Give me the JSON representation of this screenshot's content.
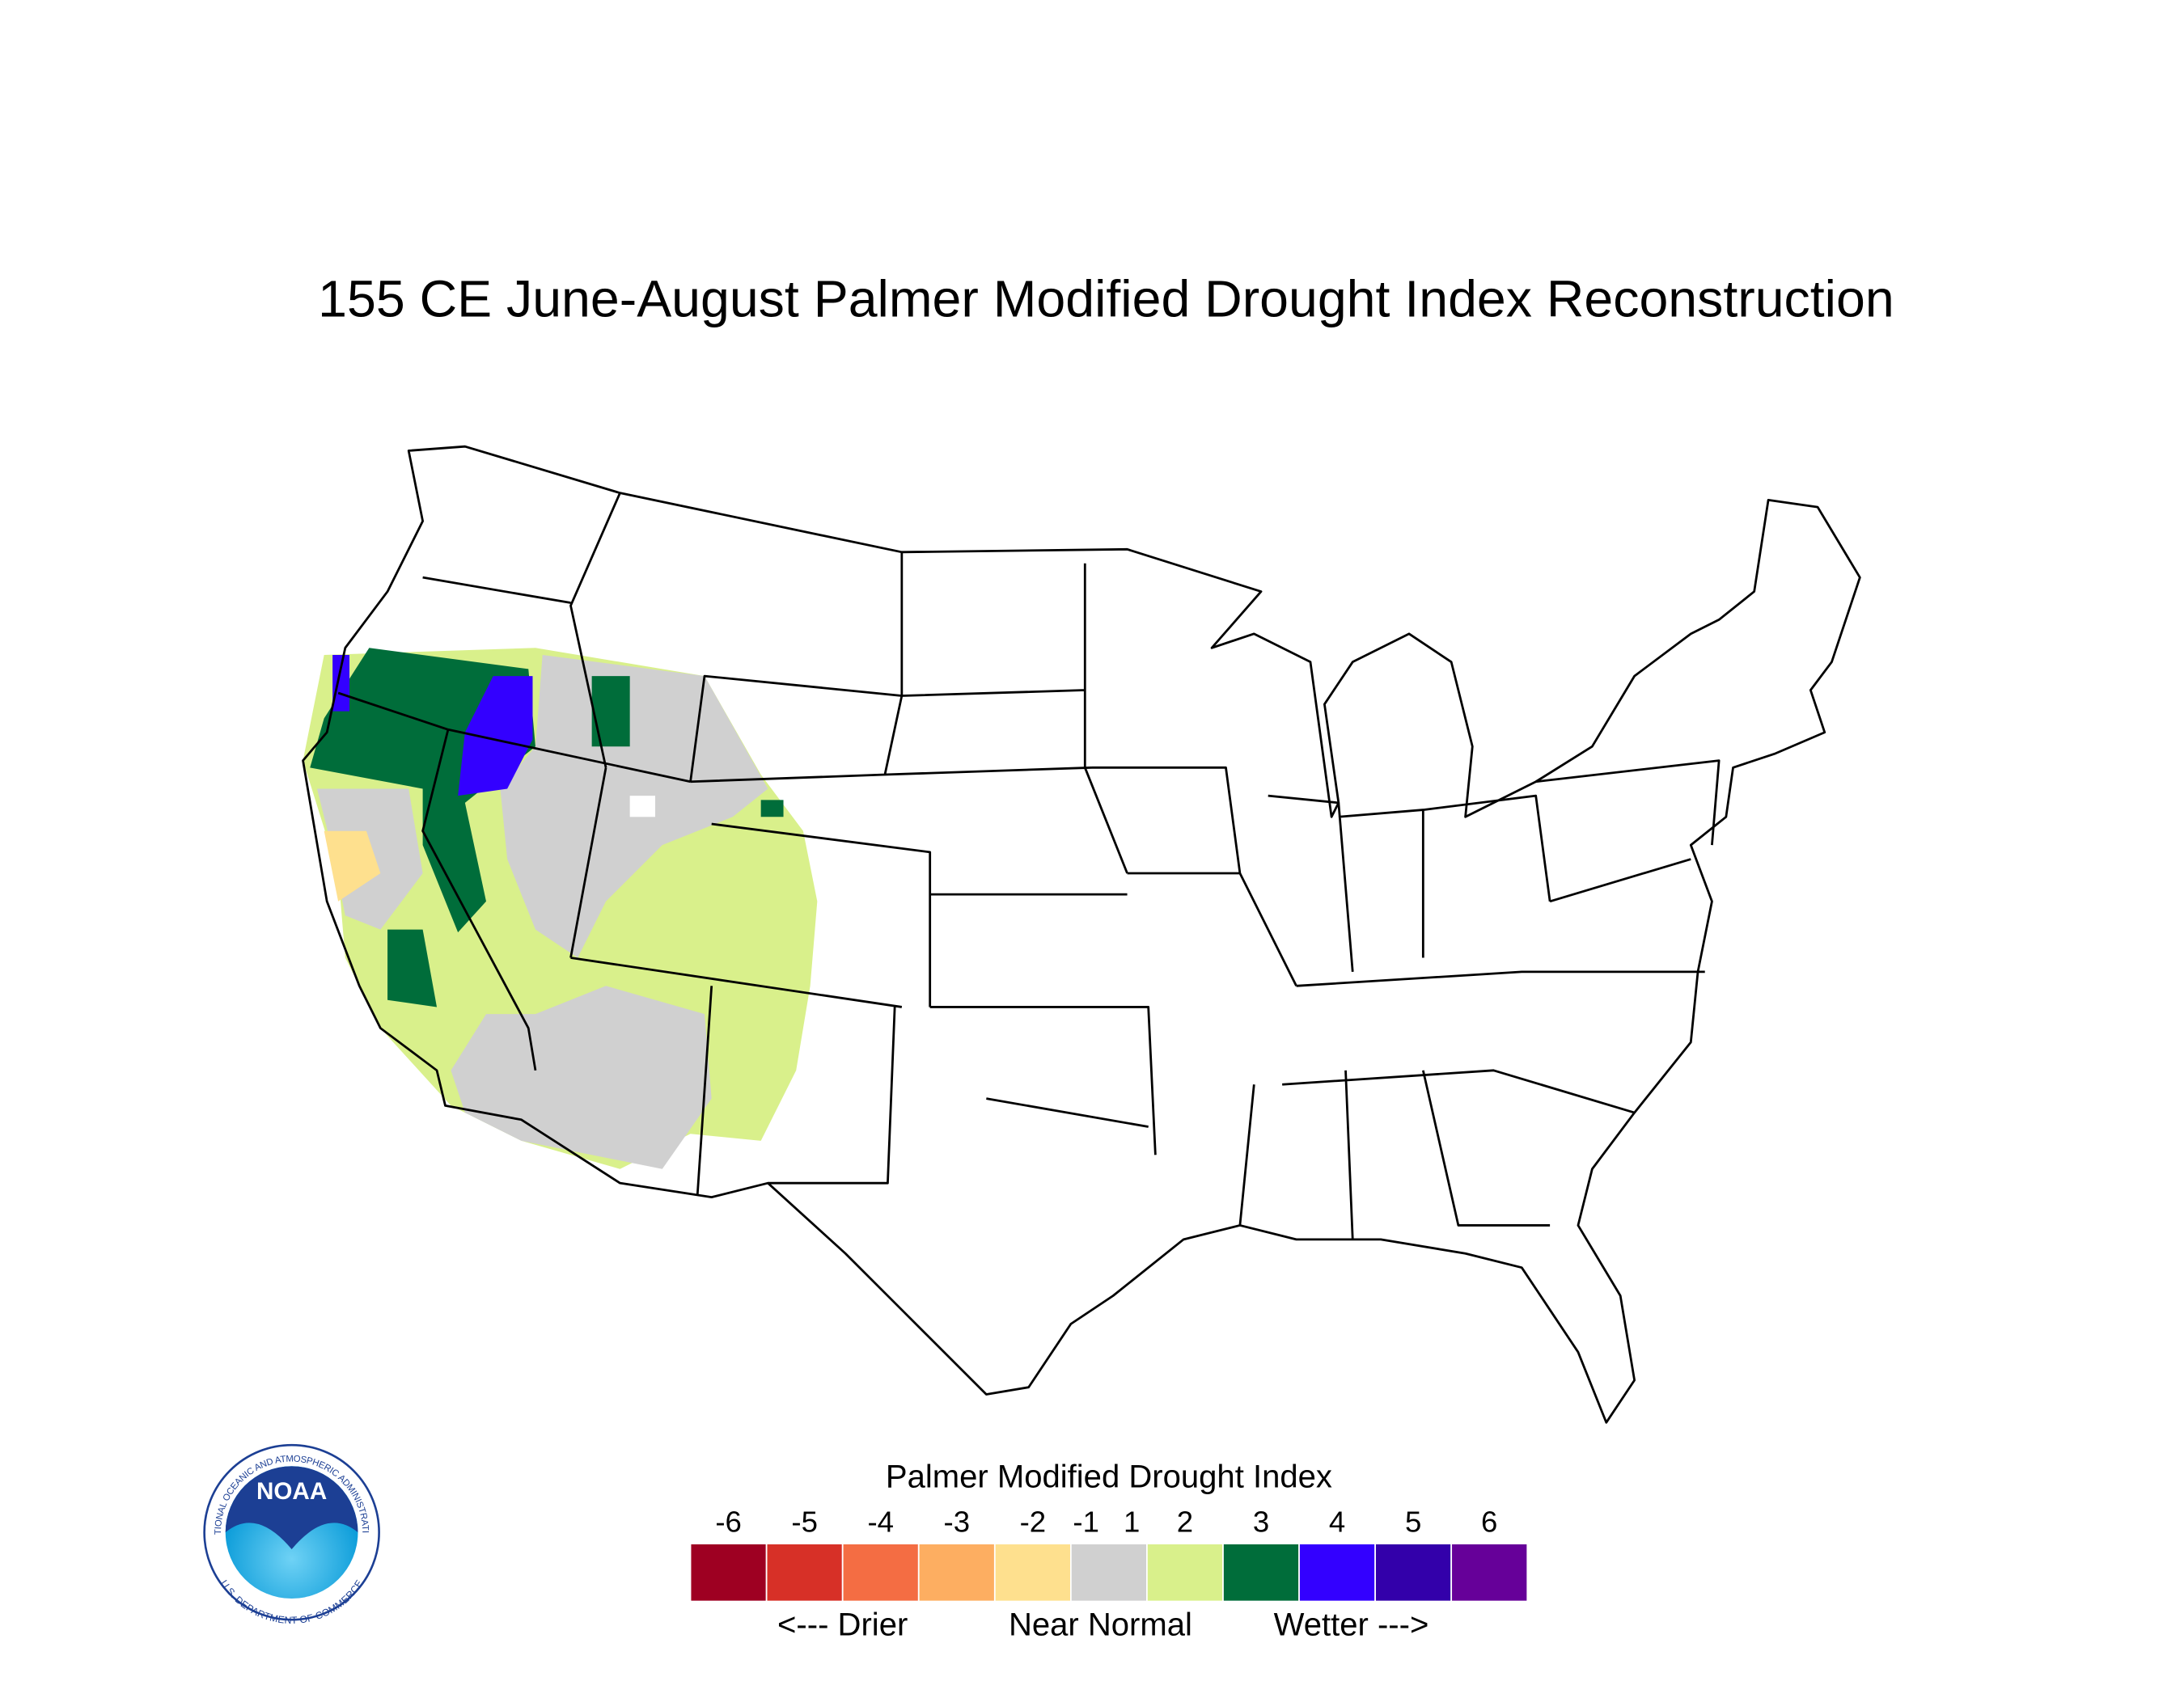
{
  "title": "155 CE  June-August  Palmer Modified Drought Index Reconstruction",
  "logo": {
    "name": "NOAA",
    "org": "NATIONAL OCEANIC AND ATMOSPHERIC ADMINISTRATION",
    "dept": "U.S. DEPARTMENT OF COMMERCE"
  },
  "legend": {
    "title": "Palmer Modified Drought Index",
    "ticks": [
      -6,
      -5,
      -4,
      -3,
      -2,
      -1,
      1,
      2,
      3,
      4,
      5,
      6
    ],
    "colors": [
      "#9e0022",
      "#d73027",
      "#f46d43",
      "#fdae61",
      "#fee08e",
      "#d0d0d0",
      "#d9f08b",
      "#006d3a",
      "#3300ff",
      "#3300aa",
      "#660099"
    ],
    "labels": [
      "<--- Drier",
      "Near Normal",
      "Wetter --->"
    ]
  }
}
